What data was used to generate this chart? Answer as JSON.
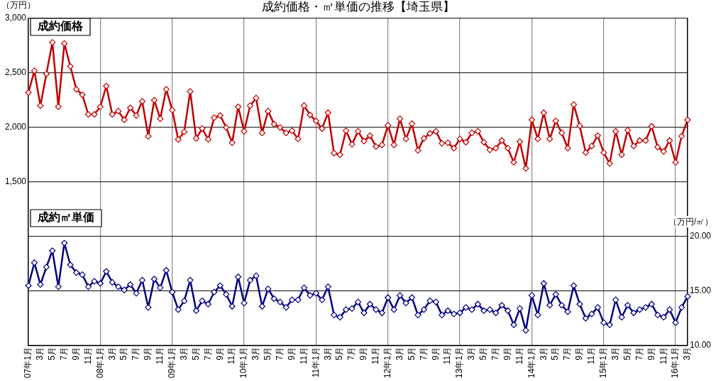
{
  "chart_data": {
    "type": "line",
    "title": "成約価格・㎡単価の推移【埼玉県】",
    "ylabel": "（万円）",
    "y2label": "（万円/㎡）",
    "categories": [
      "07年1月",
      null,
      "3月",
      null,
      "5月",
      null,
      "7月",
      null,
      "9月",
      null,
      "11月",
      null,
      "08年1月",
      null,
      "3月",
      null,
      "5月",
      null,
      "7月",
      null,
      "9月",
      null,
      "11月",
      null,
      "09年1月",
      null,
      "3月",
      null,
      "5月",
      null,
      "7月",
      null,
      "9月",
      null,
      "11月",
      null,
      "10年1月",
      null,
      "3月",
      null,
      "5月",
      null,
      "7月",
      null,
      "9月",
      null,
      "11月",
      null,
      "11年1月",
      null,
      "3月",
      null,
      "5月",
      null,
      "7月",
      null,
      "9月",
      null,
      "11月",
      null,
      "12年1月",
      null,
      "3月",
      null,
      "5月",
      null,
      "7月",
      null,
      "9月",
      null,
      "11月",
      null,
      "13年1月",
      null,
      "3月",
      null,
      "5月",
      null,
      "7月",
      null,
      "9月",
      null,
      "11月",
      null,
      "14年1月",
      null,
      "3月",
      null,
      "5月",
      null,
      "7月",
      null,
      "9月",
      null,
      "11月",
      null,
      "15年1月",
      null,
      "3月",
      null,
      "5月",
      null,
      "7月",
      null,
      "9月",
      null,
      "11月",
      null,
      "16年1月",
      null,
      "3月"
    ],
    "series": [
      {
        "name": "成約価格",
        "color": "#c00000",
        "axis": "y",
        "values": [
          2320,
          2520,
          2200,
          2490,
          2780,
          2190,
          2770,
          2560,
          2350,
          2300,
          2120,
          2120,
          2190,
          2380,
          2120,
          2150,
          2070,
          2180,
          2110,
          2240,
          1920,
          2250,
          2080,
          2350,
          2160,
          1890,
          1960,
          2330,
          1900,
          1990,
          1890,
          2090,
          2110,
          2000,
          1860,
          2190,
          1965,
          2200,
          2270,
          1950,
          2150,
          2030,
          2000,
          1950,
          1970,
          1895,
          2200,
          2115,
          2060,
          1990,
          2135,
          1765,
          1750,
          1970,
          1845,
          1965,
          1875,
          1925,
          1825,
          1840,
          2020,
          1840,
          2080,
          1895,
          2035,
          1790,
          1900,
          1945,
          1965,
          1855,
          1860,
          1810,
          1895,
          1865,
          1950,
          1965,
          1865,
          1795,
          1810,
          1880,
          1810,
          1680,
          1870,
          1625,
          2070,
          1895,
          2135,
          1895,
          2060,
          1950,
          1810,
          2210,
          2015,
          1770,
          1830,
          1925,
          1770,
          1670,
          1965,
          1750,
          1975,
          1830,
          1880,
          1880,
          2010,
          1820,
          1780,
          1880,
          1680,
          1920,
          2070
        ]
      },
      {
        "name": "成約㎡単価",
        "color": "#000080",
        "axis": "y2",
        "values": [
          15.5,
          17.6,
          15.6,
          17.2,
          18.7,
          15.4,
          19.4,
          17.4,
          16.7,
          16.5,
          15.4,
          15.9,
          15.7,
          16.8,
          15.8,
          15.4,
          15.1,
          15.6,
          14.8,
          16.0,
          13.5,
          16.1,
          15.3,
          16.9,
          14.9,
          13.3,
          14.1,
          16.0,
          13.2,
          14.1,
          13.8,
          14.9,
          15.5,
          14.7,
          13.6,
          16.3,
          13.9,
          16.0,
          16.4,
          13.6,
          15.2,
          14.3,
          14.0,
          13.5,
          14.2,
          14.2,
          15.3,
          14.6,
          14.8,
          14.2,
          15.4,
          12.8,
          12.6,
          13.3,
          13.4,
          14.0,
          13.0,
          13.8,
          13.3,
          13.0,
          14.4,
          13.3,
          14.6,
          13.9,
          14.4,
          12.8,
          13.3,
          14.1,
          14.0,
          12.8,
          13.2,
          12.9,
          13.0,
          13.5,
          13.3,
          13.8,
          13.2,
          13.3,
          13.0,
          13.7,
          13.2,
          11.9,
          13.4,
          11.4,
          14.6,
          12.8,
          15.7,
          13.7,
          14.7,
          13.7,
          13.1,
          15.5,
          13.8,
          12.5,
          12.9,
          13.5,
          12.1,
          11.9,
          14.2,
          12.6,
          13.7,
          13.0,
          13.3,
          13.5,
          13.8,
          12.8,
          12.6,
          13.3,
          12.1,
          13.5,
          14.5
        ]
      }
    ],
    "ylim": [
      0,
      3000
    ],
    "yticks": [
      {
        "value": 1500,
        "label": "1,500"
      },
      {
        "value": 2000,
        "label": "2,000"
      },
      {
        "value": 2500,
        "label": "2,500"
      },
      {
        "value": 3000,
        "label": "3,000"
      }
    ],
    "y2lim": [
      10,
      40
    ],
    "y2ticks": [
      {
        "value": 10,
        "label": "10.00"
      },
      {
        "value": 15,
        "label": "15.00"
      },
      {
        "value": 20,
        "label": "20.00"
      }
    ],
    "grid": true,
    "legend": false,
    "marker": "diamond",
    "line_style": "solid"
  }
}
